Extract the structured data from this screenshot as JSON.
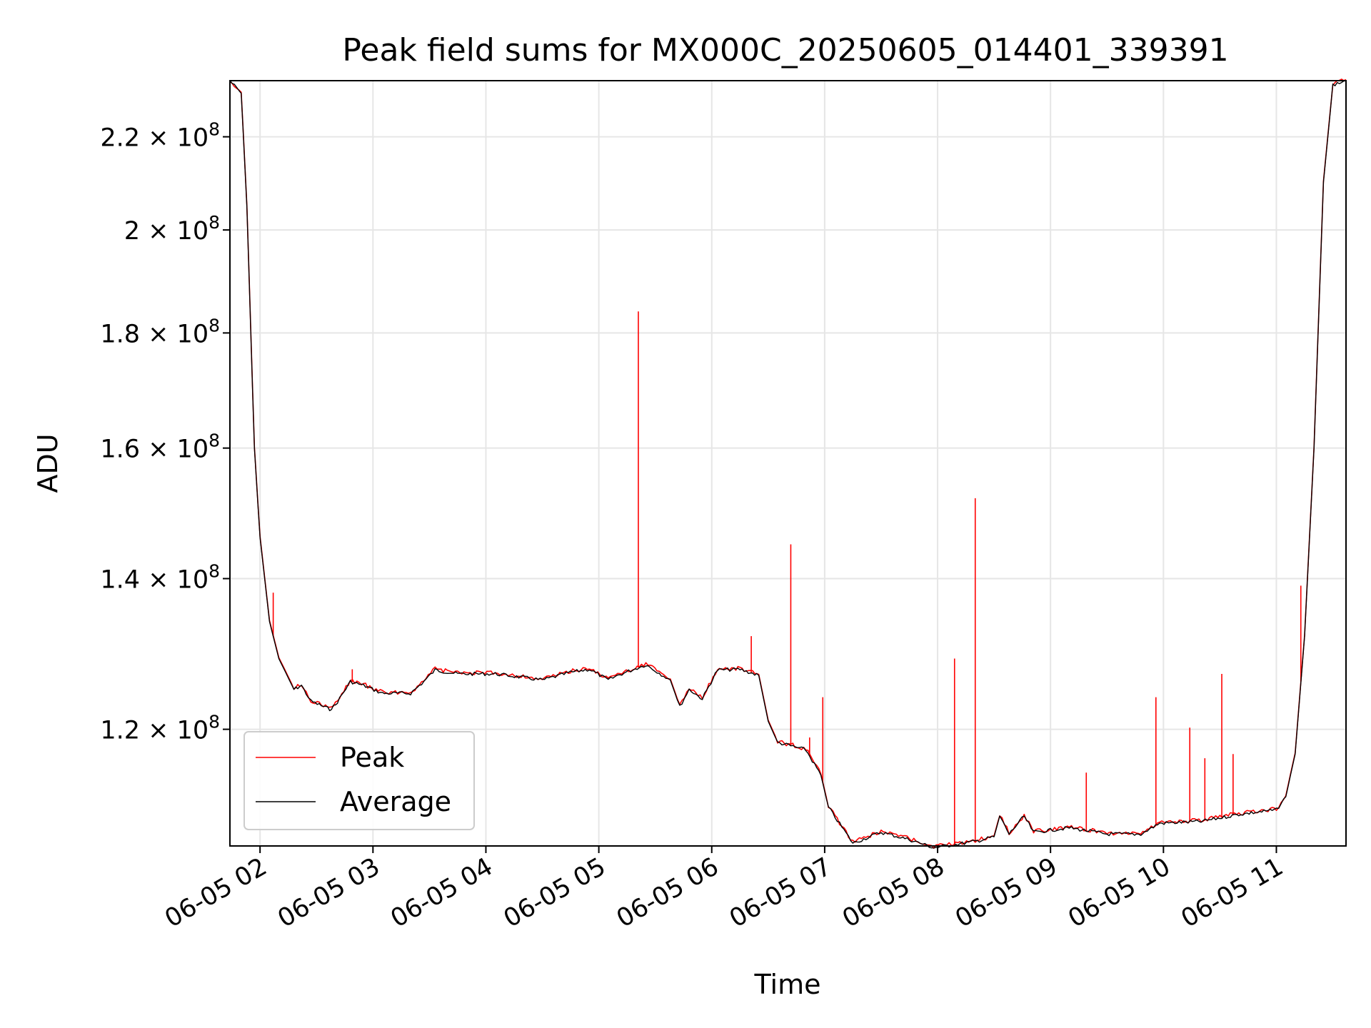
{
  "chart_data": {
    "type": "line",
    "title": "Peak field sums for MX000C_20250605_014401_339391",
    "xlabel": "Time",
    "ylabel": "ADU",
    "x_range": [
      "2025-06-05 01:44",
      "2025-06-05 11:37"
    ],
    "ylim": [
      106500000.0,
      233000000.0
    ],
    "y_scale": "log",
    "grid": true,
    "legend_position": "lower-left",
    "x_ticks": [
      {
        "value": "2025-06-05 02:00",
        "label": "06-05 02"
      },
      {
        "value": "2025-06-05 03:00",
        "label": "06-05 03"
      },
      {
        "value": "2025-06-05 04:00",
        "label": "06-05 04"
      },
      {
        "value": "2025-06-05 05:00",
        "label": "06-05 05"
      },
      {
        "value": "2025-06-05 06:00",
        "label": "06-05 06"
      },
      {
        "value": "2025-06-05 07:00",
        "label": "06-05 07"
      },
      {
        "value": "2025-06-05 08:00",
        "label": "06-05 08"
      },
      {
        "value": "2025-06-05 09:00",
        "label": "06-05 09"
      },
      {
        "value": "2025-06-05 10:00",
        "label": "06-05 10"
      },
      {
        "value": "2025-06-05 11:00",
        "label": "06-05 11"
      }
    ],
    "y_ticks": [
      {
        "value": 120000000,
        "mantissa": "1.2",
        "exponent": "8"
      },
      {
        "value": 140000000,
        "mantissa": "1.4",
        "exponent": "8"
      },
      {
        "value": 160000000,
        "mantissa": "1.6",
        "exponent": "8"
      },
      {
        "value": 180000000,
        "mantissa": "1.8",
        "exponent": "8"
      },
      {
        "value": 200000000,
        "mantissa": "2",
        "exponent": "8"
      },
      {
        "value": 220000000,
        "mantissa": "2.2",
        "exponent": "8"
      }
    ],
    "series": [
      {
        "name": "Average",
        "color": "#000000",
        "points": [
          [
            "2025-06-05 01:44",
            233000000.0
          ],
          [
            "2025-06-05 01:50",
            230000000.0
          ],
          [
            "2025-06-05 01:53",
            205000000.0
          ],
          [
            "2025-06-05 01:57",
            160000000.0
          ],
          [
            "2025-06-05 02:00",
            146000000.0
          ],
          [
            "2025-06-05 02:05",
            134000000.0
          ],
          [
            "2025-06-05 02:10",
            129000000.0
          ],
          [
            "2025-06-05 02:18",
            125000000.0
          ],
          [
            "2025-06-05 02:22",
            125500000.0
          ],
          [
            "2025-06-05 02:27",
            123500000.0
          ],
          [
            "2025-06-05 02:37",
            122500000.0
          ],
          [
            "2025-06-05 02:40",
            123000000.0
          ],
          [
            "2025-06-05 02:48",
            126000000.0
          ],
          [
            "2025-06-05 02:55",
            125500000.0
          ],
          [
            "2025-06-05 03:05",
            124500000.0
          ],
          [
            "2025-06-05 03:20",
            124500000.0
          ],
          [
            "2025-06-05 03:27",
            126000000.0
          ],
          [
            "2025-06-05 03:33",
            127500000.0
          ],
          [
            "2025-06-05 03:45",
            127000000.0
          ],
          [
            "2025-06-05 04:05",
            127000000.0
          ],
          [
            "2025-06-05 04:30",
            126200000.0
          ],
          [
            "2025-06-05 04:45",
            127200000.0
          ],
          [
            "2025-06-05 04:55",
            127600000.0
          ],
          [
            "2025-06-05 05:05",
            126200000.0
          ],
          [
            "2025-06-05 05:10",
            126800000.0
          ],
          [
            "2025-06-05 05:25",
            128200000.0
          ],
          [
            "2025-06-05 05:38",
            126200000.0
          ],
          [
            "2025-06-05 05:43",
            122800000.0
          ],
          [
            "2025-06-05 05:48",
            125000000.0
          ],
          [
            "2025-06-05 05:55",
            123800000.0
          ],
          [
            "2025-06-05 06:03",
            127500000.0
          ],
          [
            "2025-06-05 06:15",
            127600000.0
          ],
          [
            "2025-06-05 06:25",
            126800000.0
          ],
          [
            "2025-06-05 06:30",
            121000000.0
          ],
          [
            "2025-06-05 06:35",
            118400000.0
          ],
          [
            "2025-06-05 06:50",
            117500000.0
          ],
          [
            "2025-06-05 06:58",
            114500000.0
          ],
          [
            "2025-06-05 07:02",
            110800000.0
          ],
          [
            "2025-06-05 07:15",
            106800000.0
          ],
          [
            "2025-06-05 07:30",
            108000000.0
          ],
          [
            "2025-06-05 07:45",
            107200000.0
          ],
          [
            "2025-06-05 07:58",
            106300000.0
          ],
          [
            "2025-06-05 08:20",
            107000000.0
          ],
          [
            "2025-06-05 08:30",
            107500000.0
          ],
          [
            "2025-06-05 08:33",
            109800000.0
          ],
          [
            "2025-06-05 08:38",
            107800000.0
          ],
          [
            "2025-06-05 08:46",
            109800000.0
          ],
          [
            "2025-06-05 08:51",
            108000000.0
          ],
          [
            "2025-06-05 09:10",
            108500000.0
          ],
          [
            "2025-06-05 09:30",
            107800000.0
          ],
          [
            "2025-06-05 09:48",
            107800000.0
          ],
          [
            "2025-06-05 09:58",
            109000000.0
          ],
          [
            "2025-06-05 10:20",
            109200000.0
          ],
          [
            "2025-06-05 10:40",
            110000000.0
          ],
          [
            "2025-06-05 11:00",
            110500000.0
          ],
          [
            "2025-06-05 11:05",
            112000000.0
          ],
          [
            "2025-06-05 11:10",
            117000000.0
          ],
          [
            "2025-06-05 11:15",
            132000000.0
          ],
          [
            "2025-06-05 11:20",
            160000000.0
          ],
          [
            "2025-06-05 11:25",
            210000000.0
          ],
          [
            "2025-06-05 11:30",
            232000000.0
          ],
          [
            "2025-06-05 11:37",
            233000000.0
          ]
        ]
      },
      {
        "name": "Peak",
        "color": "#ff0000",
        "spikes": [
          [
            "2025-06-05 02:07",
            138000000.0
          ],
          [
            "2025-06-05 02:49",
            127600000.0
          ],
          [
            "2025-06-05 05:21",
            184000000.0
          ],
          [
            "2025-06-05 06:21",
            132000000.0
          ],
          [
            "2025-06-05 06:42",
            145000000.0
          ],
          [
            "2025-06-05 06:52",
            119000000.0
          ],
          [
            "2025-06-05 06:59",
            124000000.0
          ],
          [
            "2025-06-05 08:09",
            129000000.0
          ],
          [
            "2025-06-05 08:20",
            152000000.0
          ],
          [
            "2025-06-05 09:19",
            114800000.0
          ],
          [
            "2025-06-05 09:56",
            124000000.0
          ],
          [
            "2025-06-05 10:14",
            120200000.0
          ],
          [
            "2025-06-05 10:22",
            116500000.0
          ],
          [
            "2025-06-05 10:31",
            127000000.0
          ],
          [
            "2025-06-05 10:37",
            117000000.0
          ],
          [
            "2025-06-05 11:13",
            139000000.0
          ]
        ]
      }
    ]
  }
}
